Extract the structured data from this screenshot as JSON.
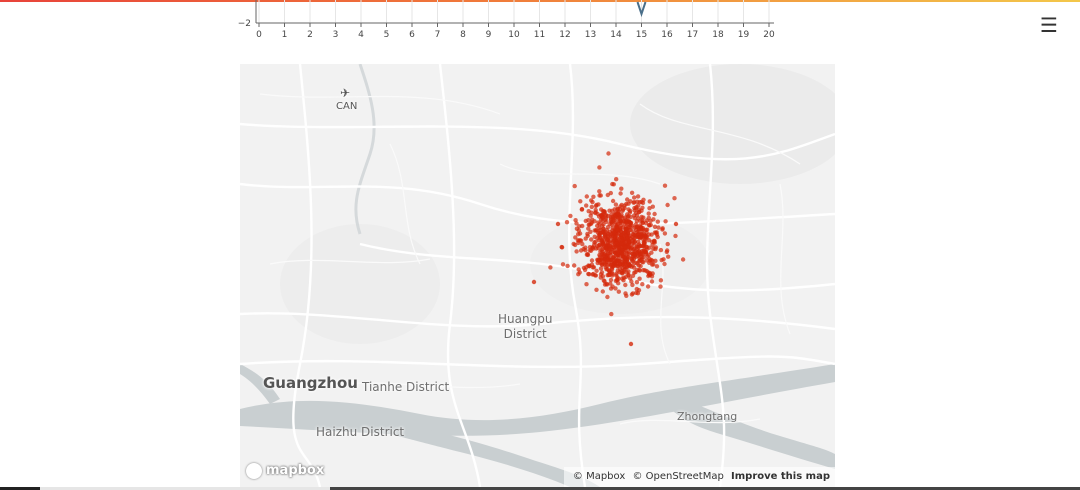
{
  "axis": {
    "y_tick": "−2",
    "x_ticks": [
      "0",
      "1",
      "2",
      "3",
      "4",
      "5",
      "6",
      "7",
      "8",
      "9",
      "10",
      "11",
      "12",
      "13",
      "14",
      "15",
      "16",
      "17",
      "18",
      "19",
      "20"
    ],
    "marker_value": 15
  },
  "menu": {
    "icon": "☰"
  },
  "map": {
    "labels": {
      "airport_code": "CAN",
      "huangpu_line1": "Huangpu",
      "huangpu_line2": "District",
      "guangzhou": "Guangzhou",
      "tianhe": "Tianhe District",
      "haizhu": "Haizhu District",
      "zhongtang": "Zhongtang"
    },
    "logo": "mapbox",
    "attribution": {
      "mapbox": "© Mapbox",
      "osm": "© OpenStreetMap",
      "improve": "Improve this map"
    },
    "colors": {
      "points": "#d42a0c",
      "water": "#c9cfd1",
      "land": "#f2f2f2",
      "roads": "#ffffff"
    }
  }
}
